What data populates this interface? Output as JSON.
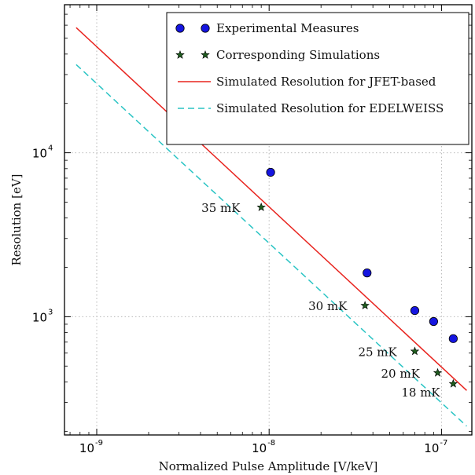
{
  "chart_data": {
    "type": "scatter",
    "title": "",
    "xlabel": "Normalized Pulse Amplitude [V/keV]",
    "ylabel": "Resolution [eV]",
    "xscale": "log",
    "yscale": "log",
    "xlim": [
      6.5e-10,
      1.5e-07
    ],
    "ylim": [
      190,
      80000
    ],
    "grid": true,
    "legend_position": "top-right",
    "x_ticks": [
      {
        "value": 1e-09,
        "base": "10",
        "exp": "-9"
      },
      {
        "value": 1e-08,
        "base": "10",
        "exp": "-8"
      },
      {
        "value": 1e-07,
        "base": "10",
        "exp": "-7"
      }
    ],
    "y_ticks": [
      {
        "value": 1000,
        "base": "10",
        "exp": "3"
      },
      {
        "value": 10000,
        "base": "10",
        "exp": "4"
      }
    ],
    "series": [
      {
        "name": "Experimental Measures",
        "kind": "markers",
        "marker": "circle",
        "color": "#1515e0",
        "x": [
          1.02e-08,
          3.7e-08,
          7e-08,
          9e-08,
          1.17e-07
        ],
        "y": [
          7600,
          1850,
          1090,
          935,
          735
        ]
      },
      {
        "name": "Corresponding Simulations",
        "kind": "markers",
        "marker": "star",
        "color": "#1f5c1f",
        "x": [
          9e-09,
          3.6e-08,
          7e-08,
          9.5e-08,
          1.17e-07
        ],
        "y": [
          4650,
          1170,
          615,
          455,
          390
        ],
        "labels": [
          "35 mK",
          "30 mK",
          "25 mK",
          "20 mK",
          "18 mK"
        ]
      },
      {
        "name": "Simulated Resolution for JFET-based",
        "kind": "line",
        "style": "solid",
        "color": "#e8231e",
        "x": [
          7.6e-10,
          1.4e-07
        ],
        "y": [
          58000,
          355
        ]
      },
      {
        "name": "Simulated Resolution for EDELWEISS",
        "kind": "line",
        "style": "dashed",
        "color": "#2ac4c4",
        "x": [
          7.6e-10,
          1.4e-07
        ],
        "y": [
          34500,
          215
        ]
      }
    ]
  }
}
